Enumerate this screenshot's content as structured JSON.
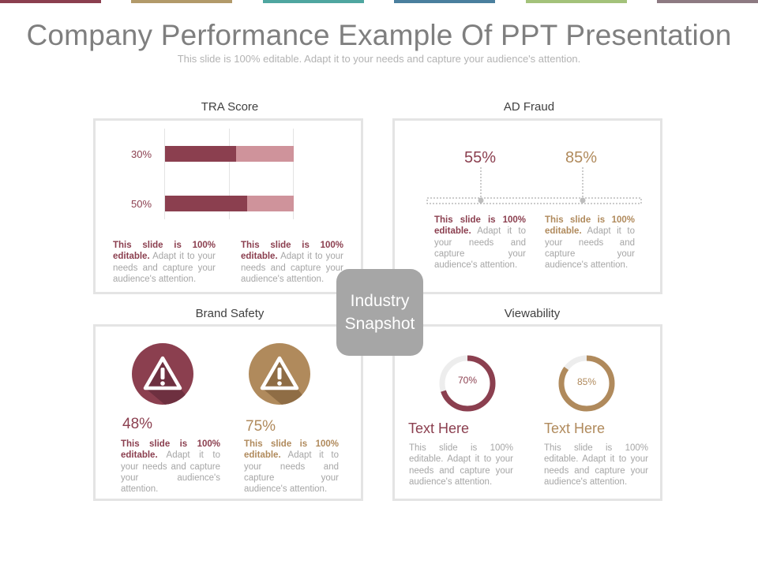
{
  "header": {
    "title": "Company Performance Example Of PPT Presentation",
    "subtitle": "This slide is 100% editable. Adapt it to your needs and capture your audience's attention."
  },
  "colors": {
    "maroon": "#8b3f4f",
    "pink": "#cf939b",
    "tan": "#b08a5c",
    "gray": "#a6a6a6",
    "topbar": [
      "#8b3f4f",
      "#b29a6a",
      "#4fa6a0",
      "#4a7f9e",
      "#a3c27a",
      "#8d7a82"
    ]
  },
  "center_badge": {
    "line1": "Industry",
    "line2": "Snapshot"
  },
  "tra_score": {
    "title": "TRA Score",
    "bars": [
      {
        "label": "30%",
        "fill": 0.55
      },
      {
        "label": "50%",
        "fill": 0.64
      }
    ],
    "desc": [
      {
        "lead": "This slide is 100% editable.",
        "rest": " Adapt it to your needs and capture your audience's attention."
      },
      {
        "lead": "This slide is 100% editable.",
        "rest": " Adapt it to your needs and capture your audience's attention."
      }
    ]
  },
  "ad_fraud": {
    "title": "AD Fraud",
    "values": [
      "55%",
      "85%"
    ],
    "desc": [
      {
        "lead": "This slide is 100% editable.",
        "rest": " Adapt it to your needs and capture your audience's attention."
      },
      {
        "lead": "This slide is 100% editable.",
        "rest": " Adapt it to your needs and capture your audience's attention."
      }
    ]
  },
  "brand_safety": {
    "title": "Brand Safety",
    "icons": [
      "warning-icon",
      "warning-icon"
    ],
    "values": [
      "48%",
      "75%"
    ],
    "desc": [
      {
        "lead": "This slide is 100% editable.",
        "rest": " Adapt it to your needs and capture your audience's attention."
      },
      {
        "lead": "This slide is 100% editable.",
        "rest": " Adapt it to your needs and capture your audience's attention."
      }
    ]
  },
  "viewability": {
    "title": "Viewability",
    "donuts": [
      {
        "label": "70%",
        "value": 0.7,
        "heading": "Text Here"
      },
      {
        "label": "85%",
        "value": 0.85,
        "heading": "Text Here"
      }
    ],
    "desc": [
      "This slide is 100% editable. Adapt it to your needs and capture your audience's attention.",
      "This slide is 100% editable. Adapt it to your needs and capture your audience's attention."
    ]
  }
}
